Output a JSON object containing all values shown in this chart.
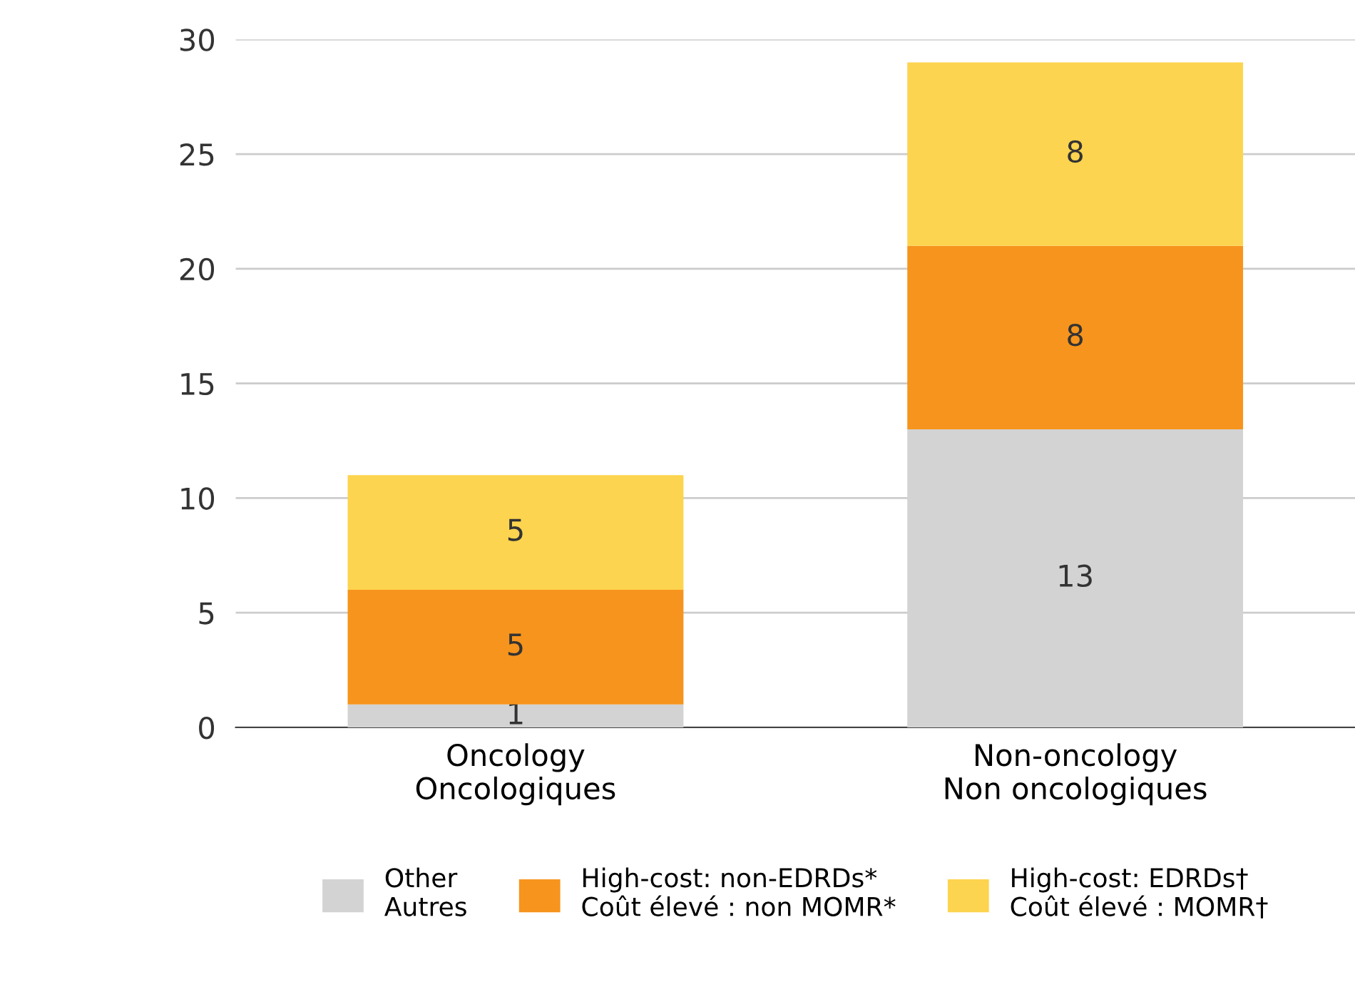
{
  "chart_data": {
    "type": "bar",
    "stacked": true,
    "categories": [
      "Oncology\nOncologiques",
      "Non-oncology\nNon oncologiques"
    ],
    "series": [
      {
        "name": "Other\nAutres",
        "color": "#d3d3d3",
        "values": [
          1,
          13
        ]
      },
      {
        "name": "High-cost: non-EDRDs*\nCoût élevé : non MOMR*",
        "color": "#f7941d",
        "values": [
          5,
          8
        ]
      },
      {
        "name": "High-cost: EDRDs†\nCoût élevé : MOMR†",
        "color": "#fdd44f",
        "values": [
          5,
          8
        ]
      }
    ],
    "ylim": [
      0,
      30
    ],
    "yticks": [
      0,
      5,
      10,
      15,
      20,
      25,
      30
    ],
    "grid": "y",
    "data_labels": true,
    "legend": "bottom"
  }
}
